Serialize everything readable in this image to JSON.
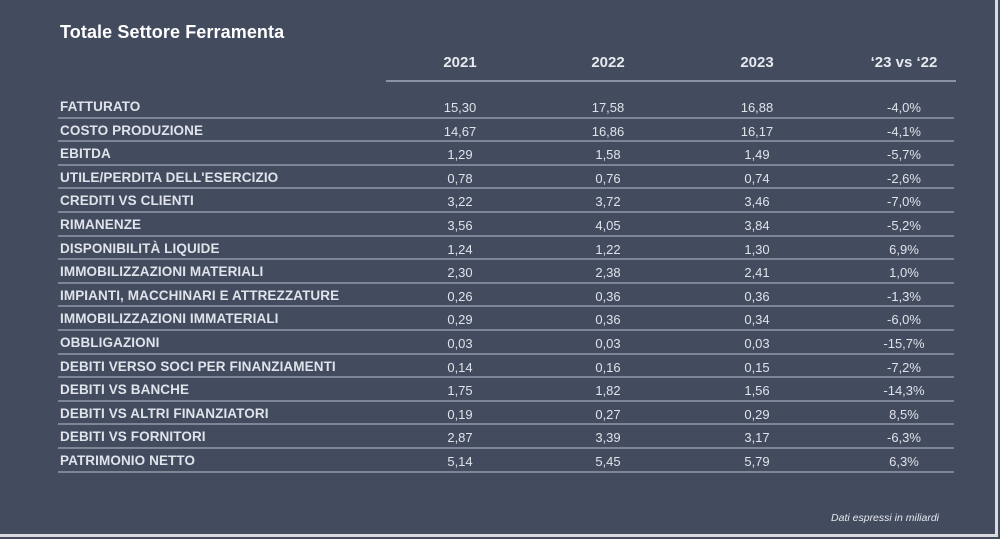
{
  "title": "Totale Settore Ferramenta",
  "columns": [
    "2021",
    "2022",
    "2023",
    "‘23 vs ‘22"
  ],
  "rows": [
    {
      "label": "FATTURATO",
      "v2021": "15,30",
      "v2022": "17,58",
      "v2023": "16,88",
      "delta": "-4,0%"
    },
    {
      "label": "COSTO PRODUZIONE",
      "v2021": "14,67",
      "v2022": "16,86",
      "v2023": "16,17",
      "delta": "-4,1%"
    },
    {
      "label": "EBITDA",
      "v2021": "1,29",
      "v2022": "1,58",
      "v2023": "1,49",
      "delta": "-5,7%"
    },
    {
      "label": "UTILE/PERDITA DELL'ESERCIZIO",
      "v2021": "0,78",
      "v2022": "0,76",
      "v2023": "0,74",
      "delta": "-2,6%"
    },
    {
      "label": "CREDITI VS CLIENTI",
      "v2021": "3,22",
      "v2022": "3,72",
      "v2023": "3,46",
      "delta": "-7,0%"
    },
    {
      "label": "RIMANENZE",
      "v2021": "3,56",
      "v2022": "4,05",
      "v2023": "3,84",
      "delta": "-5,2%"
    },
    {
      "label": "DISPONIBILITÀ LIQUIDE",
      "v2021": "1,24",
      "v2022": "1,22",
      "v2023": "1,30",
      "delta": "6,9%"
    },
    {
      "label": "IMMOBILIZZAZIONI MATERIALI",
      "v2021": "2,30",
      "v2022": "2,38",
      "v2023": "2,41",
      "delta": "1,0%"
    },
    {
      "label": "IMPIANTI, MACCHINARI E ATTREZZATURE",
      "v2021": "0,26",
      "v2022": "0,36",
      "v2023": "0,36",
      "delta": "-1,3%"
    },
    {
      "label": "IMMOBILIZZAZIONI IMMATERIALI",
      "v2021": "0,29",
      "v2022": "0,36",
      "v2023": "0,34",
      "delta": "-6,0%"
    },
    {
      "label": "OBBLIGAZIONI",
      "v2021": "0,03",
      "v2022": "0,03",
      "v2023": "0,03",
      "delta": "-15,7%"
    },
    {
      "label": "DEBITI VERSO SOCI PER FINANZIAMENTI",
      "v2021": "0,14",
      "v2022": "0,16",
      "v2023": "0,15",
      "delta": "-7,2%"
    },
    {
      "label": "DEBITI VS BANCHE",
      "v2021": "1,75",
      "v2022": "1,82",
      "v2023": "1,56",
      "delta": "-14,3%"
    },
    {
      "label": "DEBITI VS ALTRI FINANZIATORI",
      "v2021": "0,19",
      "v2022": "0,27",
      "v2023": "0,29",
      "delta": "8,5%"
    },
    {
      "label": "DEBITI VS FORNITORI",
      "v2021": "2,87",
      "v2022": "3,39",
      "v2023": "3,17",
      "delta": "-6,3%"
    },
    {
      "label": "PATRIMONIO NETTO",
      "v2021": "5,14",
      "v2022": "5,45",
      "v2023": "5,79",
      "delta": "6,3%"
    }
  ],
  "footnote": "Dati espressi in miliardi",
  "colors": {
    "background": "#434b5e",
    "rule": "#7d8597",
    "text": "#dfe3ea"
  }
}
